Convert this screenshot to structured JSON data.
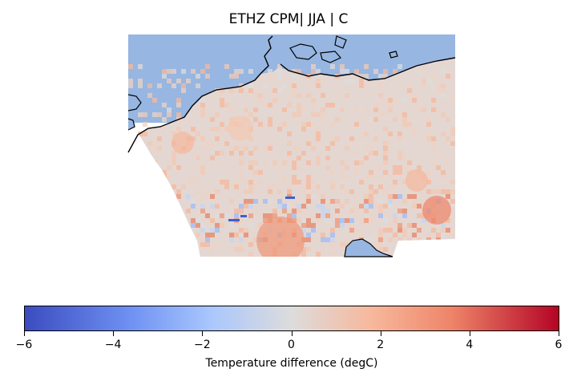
{
  "title": "ETHZ CPM| JJA | C",
  "colorbar": {
    "label": "Temperature difference (degC)",
    "ticks": [
      "−6",
      "−4",
      "−2",
      "0",
      "2",
      "4",
      "6"
    ],
    "min": -6,
    "max": 6,
    "colormap": "coolwarm",
    "colors": {
      "low": "#3b4cc0",
      "mid": "#dddcdc",
      "high": "#b40426"
    }
  },
  "map": {
    "water_color": "#97b6e1",
    "coastline_color": "#000000",
    "field_colors": [
      "#dddcdc",
      "#ecd3c5",
      "#f2c9b4",
      "#f5b89c",
      "#ef9778",
      "#e88463",
      "#c5d5ef",
      "#9ebcf7",
      "#3d5fd1"
    ]
  }
}
